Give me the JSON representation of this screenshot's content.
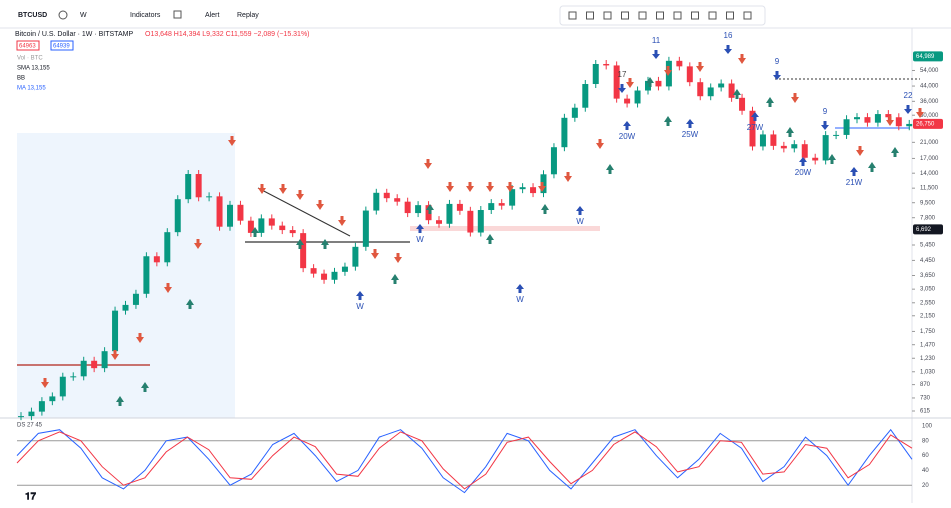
{
  "toolbar": {
    "symbol": "BTCUSD",
    "interval": "W",
    "indicators": "Indicators",
    "alert": "Alert",
    "replay": "Replay"
  },
  "legend": {
    "title": "Bitcoin / U.S. Dollar · 1W · BITSTAMP",
    "ohlc": "O13,648 H14,394 L9,332 C11,559 −2,089 (−15.31%)",
    "bid": "64963",
    "ask": "64939",
    "indicators": [
      "Vol · BTC",
      "SMA 13,155",
      "BB",
      "MA 13,155"
    ]
  },
  "chart": {
    "type": "candlestick",
    "log_scale": true,
    "ylim": [
      561,
      80600
    ],
    "closes": [
      575,
      610,
      700,
      745,
      965,
      970,
      1190,
      1080,
      1350,
      2300,
      2480,
      2870,
      4700,
      4340,
      6450,
      9950,
      13850,
      10200,
      10330,
      6930,
      9240,
      7500,
      6390,
      7730,
      7030,
      6630,
      6370,
      4020,
      3740,
      3450,
      3830,
      4100,
      5320,
      8570,
      10820,
      10080,
      9630,
      8290,
      9200,
      7550,
      7200,
      9350,
      8540,
      6420,
      8630,
      9450,
      9140,
      11350,
      11650,
      10780,
      13800,
      19700,
      28990,
      33100,
      45200,
      58800,
      57700,
      37300,
      35000,
      41500,
      47100,
      43800,
      61300,
      57000,
      46300,
      38500,
      43200,
      45500,
      37700,
      31800,
      19900,
      23300,
      20050,
      19400,
      20500,
      17150,
      16550,
      23100,
      23150,
      28450,
      29250,
      27200,
      30450,
      29200,
      25950,
      26750
    ],
    "yticks": [
      {
        "value": 54000,
        "label": "54,000"
      },
      {
        "value": 44000,
        "label": "44,000"
      },
      {
        "value": 36000,
        "label": "36,000"
      },
      {
        "value": 30000,
        "label": "30,000"
      },
      {
        "value": 21000,
        "label": "21,000"
      },
      {
        "value": 17000,
        "label": "17,000"
      },
      {
        "value": 14000,
        "label": "14,000"
      },
      {
        "value": 11500,
        "label": "11,500"
      },
      {
        "value": 9500,
        "label": "9,500"
      },
      {
        "value": 7800,
        "label": "7,800"
      },
      {
        "value": 5450,
        "label": "5,450"
      },
      {
        "value": 4450,
        "label": "4,450"
      },
      {
        "value": 3650,
        "label": "3,650"
      },
      {
        "value": 3050,
        "label": "3,050"
      },
      {
        "value": 2550,
        "label": "2,550"
      },
      {
        "value": 2150,
        "label": "2,150"
      },
      {
        "value": 1750,
        "label": "1,750"
      },
      {
        "value": 1470,
        "label": "1,470"
      },
      {
        "value": 1230,
        "label": "1,230"
      },
      {
        "value": 1030,
        "label": "1,030"
      },
      870,
      730,
      615
    ],
    "price_labels": [
      {
        "value": 64989,
        "label": "64,989"
      },
      {
        "value": 26750,
        "label": "26,750"
      },
      {
        "value": 6692,
        "label": "6,692"
      }
    ],
    "annotations": [
      "17",
      "11",
      "16",
      "9",
      "9",
      "22",
      "20W",
      "25W",
      "27W",
      "20W",
      "21W",
      "W",
      "W",
      "W",
      "W"
    ]
  },
  "oscillator": {
    "label": "DS 27 45",
    "ylim": [
      0,
      100
    ],
    "yticks": [
      20,
      40,
      60,
      80,
      100
    ],
    "k": [
      60,
      90,
      95,
      70,
      30,
      15,
      40,
      80,
      85,
      55,
      20,
      35,
      75,
      90,
      60,
      25,
      40,
      85,
      95,
      70,
      30,
      10,
      45,
      90,
      80,
      40,
      15,
      50,
      85,
      95,
      60,
      30,
      55,
      90,
      70,
      25,
      45,
      85,
      60,
      20,
      60,
      95,
      55
    ],
    "d": [
      50,
      80,
      92,
      80,
      45,
      20,
      30,
      65,
      85,
      68,
      30,
      28,
      60,
      85,
      72,
      35,
      32,
      70,
      92,
      80,
      42,
      15,
      35,
      78,
      85,
      52,
      22,
      40,
      75,
      92,
      72,
      38,
      45,
      80,
      78,
      35,
      38,
      75,
      70,
      30,
      48,
      88,
      70
    ]
  }
}
